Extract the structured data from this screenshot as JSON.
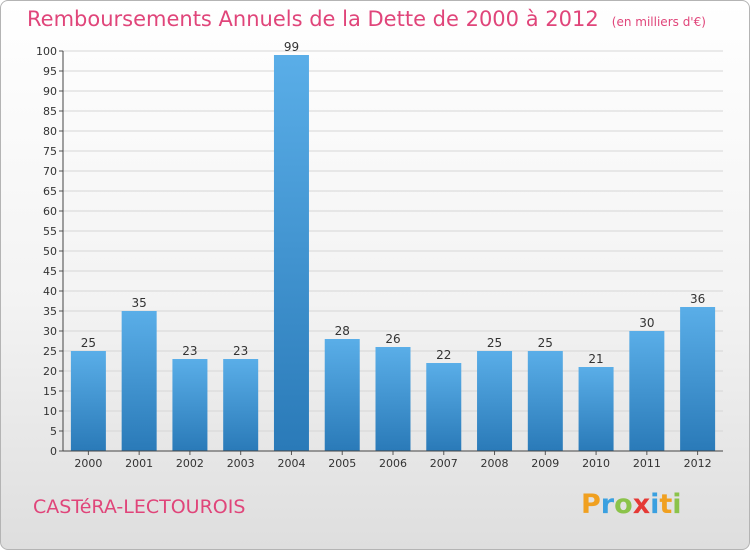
{
  "header": {
    "title": "Remboursements Annuels de la Dette de 2000 à 2012",
    "unit": "(en milliers d'€)"
  },
  "footer": {
    "commune": "CASTéRA-LECTOUROIS",
    "brand_letters": [
      {
        "char": "P",
        "color": "#f0a020"
      },
      {
        "char": "r",
        "color": "#3aa0e0"
      },
      {
        "char": "o",
        "color": "#8bc34a"
      },
      {
        "char": "x",
        "color": "#e53935"
      },
      {
        "char": "i",
        "color": "#3aa0e0"
      },
      {
        "char": "t",
        "color": "#f0a020"
      },
      {
        "char": "i",
        "color": "#8bc34a"
      }
    ]
  },
  "chart_data": {
    "type": "bar",
    "title": "Remboursements Annuels de la Dette de 2000 à 2012",
    "subtitle": "(en milliers d'€)",
    "categories": [
      "2000",
      "2001",
      "2002",
      "2003",
      "2004",
      "2005",
      "2006",
      "2007",
      "2008",
      "2009",
      "2010",
      "2011",
      "2012"
    ],
    "values": [
      25,
      35,
      23,
      23,
      99,
      28,
      26,
      22,
      25,
      25,
      21,
      30,
      36
    ],
    "ylim": [
      0,
      100
    ],
    "ytick_step": 5,
    "grid": true,
    "bar_color_top": "#5aaee8",
    "bar_color_bottom": "#2a7ab8",
    "title_color": "#e0457a"
  }
}
